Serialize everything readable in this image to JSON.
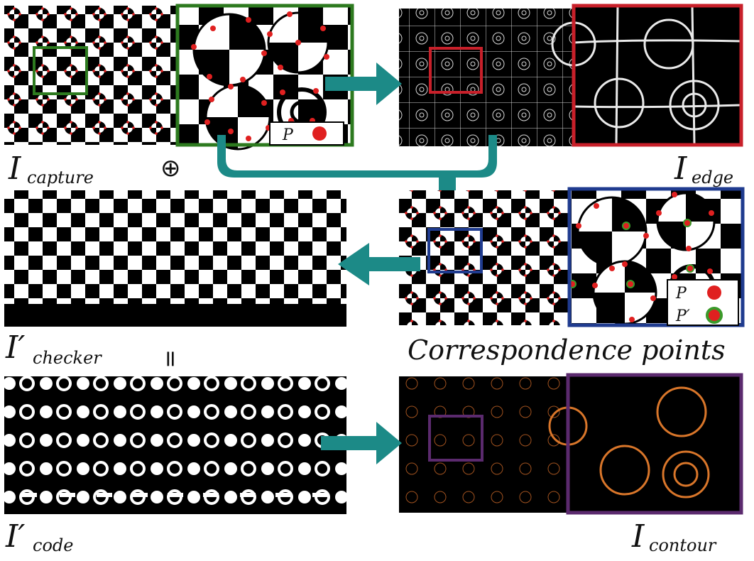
{
  "labels": {
    "capture": {
      "main": "I",
      "sub": "capture"
    },
    "edge": {
      "main": "I",
      "sub": "edge"
    },
    "checker": {
      "main": "I′",
      "sub": "checker"
    },
    "code": {
      "main": "I′",
      "sub": "code"
    },
    "contour": {
      "main": "I",
      "sub": "contour"
    },
    "correspondence": "Correspondence points",
    "oplus": "⊕",
    "equals": "="
  },
  "legend_top": {
    "p": "P"
  },
  "legend_mid": {
    "p": "P",
    "p_prime": "P′"
  },
  "colors": {
    "arrow": "#1c8a87",
    "green_box": "#2d7a1f",
    "red_box": "#c8202a",
    "blue_box": "#1f3b8f",
    "purple_box": "#5b2a6e",
    "point_red": "#e02020",
    "point_green_ring": "#3a9a2a",
    "contour": "#d9762a"
  },
  "icons": [
    "arrow-right-icon",
    "arrow-down-icon",
    "arrow-left-icon",
    "oplus-icon"
  ]
}
